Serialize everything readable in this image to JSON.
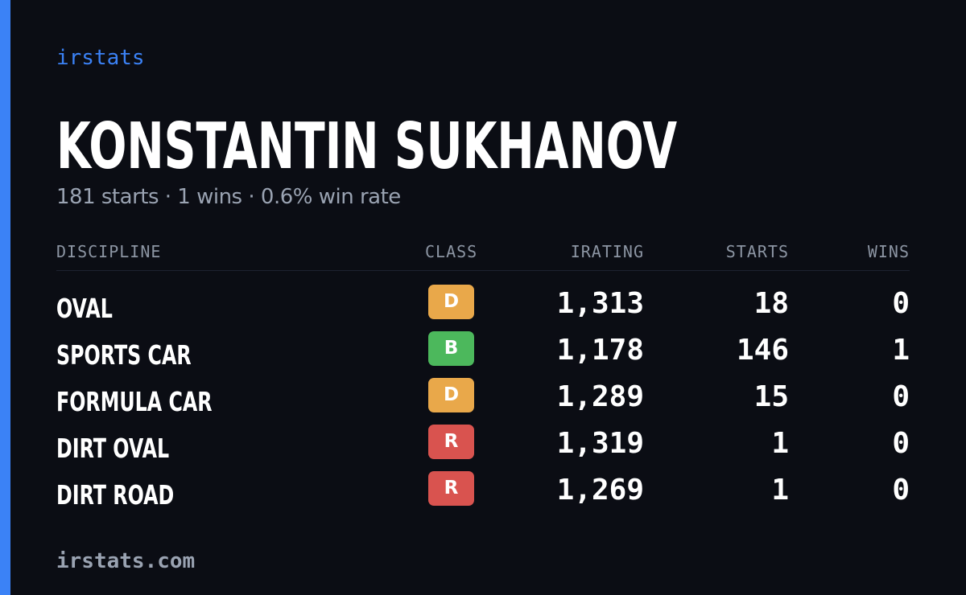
{
  "brand": "irstats",
  "driver": {
    "name": "KONSTANTIN SUKHANOV",
    "summary": "181 starts · 1 wins · 0.6% win rate"
  },
  "table": {
    "headers": {
      "discipline": "DISCIPLINE",
      "class": "CLASS",
      "irating": "IRATING",
      "starts": "STARTS",
      "wins": "WINS"
    },
    "rows": [
      {
        "discipline": "OVAL",
        "class": "D",
        "class_color": "#e9a84a",
        "irating": "1,313",
        "starts": "18",
        "wins": "0"
      },
      {
        "discipline": "SPORTS CAR",
        "class": "B",
        "class_color": "#4cb85c",
        "irating": "1,178",
        "starts": "146",
        "wins": "1"
      },
      {
        "discipline": "FORMULA CAR",
        "class": "D",
        "class_color": "#e9a84a",
        "irating": "1,289",
        "starts": "15",
        "wins": "0"
      },
      {
        "discipline": "DIRT OVAL",
        "class": "R",
        "class_color": "#d9534f",
        "irating": "1,319",
        "starts": "1",
        "wins": "0"
      },
      {
        "discipline": "DIRT ROAD",
        "class": "R",
        "class_color": "#d9534f",
        "irating": "1,269",
        "starts": "1",
        "wins": "0"
      }
    ]
  },
  "footer": "irstats.com",
  "colors": {
    "background": "#0b0d14",
    "accent": "#3b82f6"
  }
}
